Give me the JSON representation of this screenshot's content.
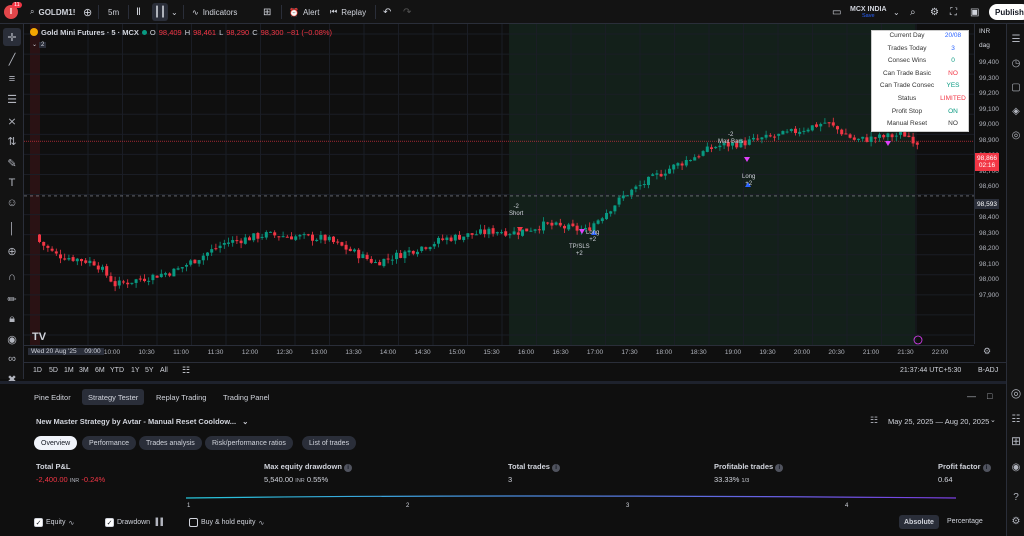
{
  "topbar": {
    "notif_count": "11",
    "symbol": "GOLDM1!",
    "interval": "5m",
    "indicators": "Indicators",
    "alert": "Alert",
    "replay": "Replay",
    "exchange_name": "MCX INDIA",
    "save": "Save",
    "publish": "Publish"
  },
  "legend": {
    "title": "Gold Mini Futures · 5 · MCX",
    "o_label": "O",
    "o": "98,409",
    "h_label": "H",
    "h": "98,461",
    "l_label": "L",
    "l": "98,290",
    "c_label": "C",
    "c": "98,300",
    "chg": "−81 (−0.08%)",
    "badge": "2"
  },
  "yaxis": {
    "currency": "INR",
    "unit": "dag",
    "ticks": [
      "99,400",
      "99,300",
      "99,200",
      "99,100",
      "99,000",
      "98,900",
      "98,800",
      "98,700",
      "98,600",
      "98,500",
      "98,400",
      "98,300",
      "98,200",
      "98,100",
      "98,000",
      "97,900"
    ],
    "last_price": "98,866",
    "countdown": "02:16",
    "crosshair_price": "98,593"
  },
  "xaxis": {
    "cursor_date": "Wed 20 Aug '25",
    "cursor_time": "09:00",
    "ticks": [
      "10:00",
      "10:30",
      "11:00",
      "11:30",
      "12:00",
      "12:30",
      "13:00",
      "13:30",
      "14:00",
      "14:30",
      "15:00",
      "15:30",
      "16:00",
      "16:30",
      "17:00",
      "17:30",
      "18:00",
      "18:30",
      "19:00",
      "19:30",
      "20:00",
      "20:30",
      "21:00",
      "21:30",
      "22:00"
    ]
  },
  "rangebar": {
    "ranges": [
      "1D",
      "5D",
      "1M",
      "3M",
      "6M",
      "YTD",
      "1Y",
      "5Y",
      "All"
    ],
    "clock": "21:37:44 UTC+5:30",
    "adj": "B-ADJ"
  },
  "status_table": [
    {
      "k": "Current Day",
      "v": "20/08",
      "c": "#2962ff"
    },
    {
      "k": "Trades Today",
      "v": "3",
      "c": "#2962ff"
    },
    {
      "k": "Consec Wins",
      "v": "0",
      "c": "#089981"
    },
    {
      "k": "Can Trade Basic",
      "v": "NO",
      "c": "#f23645"
    },
    {
      "k": "Can Trade Consec",
      "v": "YES",
      "c": "#089981"
    },
    {
      "k": "Status",
      "v": "LIMITED",
      "c": "#f23645"
    },
    {
      "k": "Profit Stop",
      "v": "ON",
      "c": "#089981"
    },
    {
      "k": "Manual Reset",
      "v": "NO",
      "c": "#333333"
    }
  ],
  "annotations": {
    "short": "-2\nShort",
    "long1": "Long\n+2",
    "tpsls": "TP/SLS\n+2",
    "maxbars": "-2\nMax Bars",
    "long2": "Long\n+2"
  },
  "bottom": {
    "tabs": [
      "Pine Editor",
      "Strategy Tester",
      "Replay Trading",
      "Trading Panel"
    ],
    "strategy_name": "New Master Strategy by Avtar - Manual Reset Cooldow...",
    "date_range": "May 25, 2025 — Aug 20, 2025",
    "subtabs": [
      "Overview",
      "Performance",
      "Trades analysis",
      "Risk/performance ratios",
      "List of trades"
    ],
    "metrics": [
      {
        "label": "Total P&L",
        "value": "-2,400.00",
        "unit": "INR",
        "extra": "-0.24%",
        "color": "#f23645"
      },
      {
        "label": "Max equity drawdown",
        "value": "5,540.00",
        "unit": "INR",
        "extra": "0.55%",
        "color": "#d1d4dc"
      },
      {
        "label": "Total trades",
        "value": "3",
        "unit": "",
        "extra": "",
        "color": "#d1d4dc"
      },
      {
        "label": "Profitable trades",
        "value": "33.33%",
        "unit": "",
        "extra": "1/3",
        "color": "#d1d4dc"
      },
      {
        "label": "Profit factor",
        "value": "0.64",
        "unit": "",
        "extra": "",
        "color": "#d1d4dc"
      }
    ],
    "equity_ticks": [
      "1",
      "2",
      "3",
      "4"
    ],
    "checks": [
      {
        "label": "Equity",
        "checked": true
      },
      {
        "label": "Drawdown",
        "checked": true
      },
      {
        "label": "Buy & hold equity",
        "checked": false
      }
    ],
    "absolute": "Absolute",
    "percentage": "Percentage"
  },
  "colors": {
    "up": "#089981",
    "down": "#f23645",
    "accent": "#2962ff"
  },
  "chart_data": {
    "type": "candlestick",
    "session_shading": {
      "from": "15:45",
      "to": "21:35"
    },
    "last_close": 98866
  }
}
